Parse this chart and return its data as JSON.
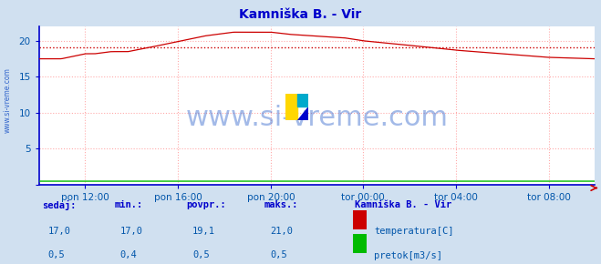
{
  "title": "Kamniška B. - Vir",
  "title_color": "#0000cc",
  "bg_color": "#d0e0f0",
  "plot_bg_color": "#ffffff",
  "grid_color": "#ffaaaa",
  "grid_style": ":",
  "ylim": [
    0,
    22
  ],
  "yticks": [
    0,
    5,
    10,
    15,
    20
  ],
  "ytick_labels": [
    "",
    "5",
    "10",
    "15",
    "20"
  ],
  "tick_color": "#0055aa",
  "xtick_labels": [
    "pon 12:00",
    "pon 16:00",
    "pon 20:00",
    "tor 00:00",
    "tor 04:00",
    "tor 08:00"
  ],
  "xtick_positions": [
    0.083,
    0.25,
    0.417,
    0.583,
    0.75,
    0.917
  ],
  "temp_color": "#cc0000",
  "pretok_color": "#00bb00",
  "avg_line_color": "#cc0000",
  "avg_line_style": ":",
  "avg_value": 19.1,
  "axis_color": "#0000cc",
  "watermark": "www.si-vreme.com",
  "watermark_color": "#3366cc",
  "watermark_alpha": 0.45,
  "watermark_fontsize": 22,
  "footer_label_color": "#0000cc",
  "footer_value_color": "#0055aa",
  "legend_title": "Kamniška B. - Vir",
  "legend_title_color": "#0000cc",
  "legend_items": [
    "temperatura[C]",
    "pretok[m3/s]"
  ],
  "legend_colors": [
    "#cc0000",
    "#00bb00"
  ],
  "n_points": 288,
  "left_label": "www.si-vreme.com",
  "left_label_color": "#3366cc"
}
